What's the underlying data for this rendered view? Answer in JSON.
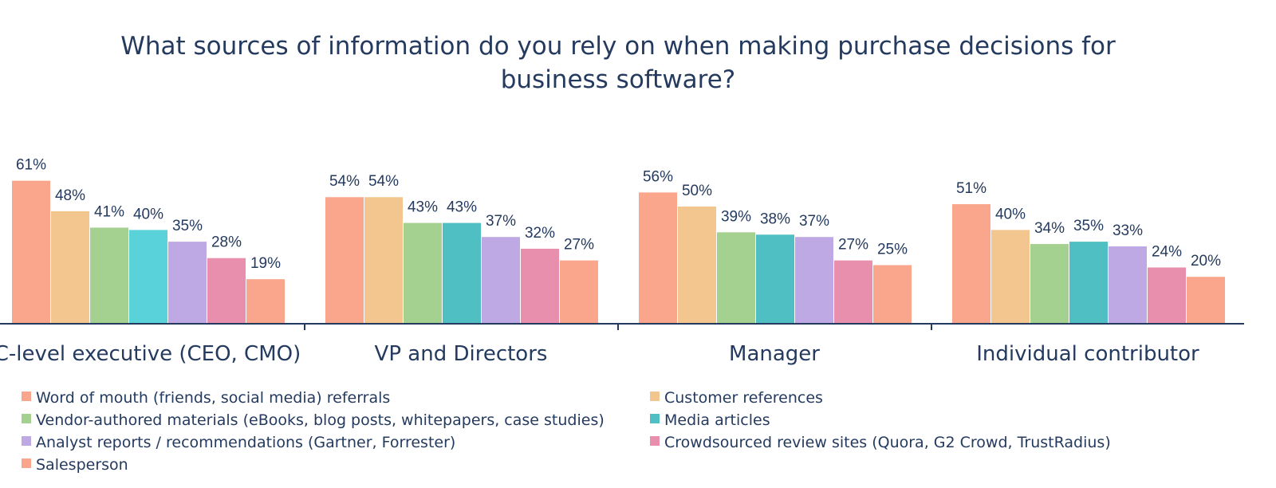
{
  "chart_data": {
    "type": "bar",
    "title": "What sources of information do you rely on when making purchase decisions for business software?",
    "title_lines": [
      "What sources of information do you rely on when making purchase decisions for",
      "business software?"
    ],
    "categories": [
      "C-level executive (CEO, CMO)",
      "VP and Directors",
      "Manager",
      "Individual contributor"
    ],
    "series": [
      {
        "name": "Word of mouth (friends, social media) referrals",
        "values": [
          61,
          54,
          56,
          51
        ],
        "labels": [
          "61%",
          "54%",
          "56%",
          "51%"
        ]
      },
      {
        "name": "Customer references",
        "values": [
          48,
          54,
          50,
          40
        ],
        "labels": [
          "48%",
          "54%",
          "50%",
          "40%"
        ]
      },
      {
        "name": "Vendor-authored materials (eBooks, blog posts, whitepapers, case studies)",
        "values": [
          41,
          43,
          39,
          34
        ],
        "labels": [
          "41%",
          "43%",
          "39%",
          "34%"
        ]
      },
      {
        "name": "Media articles",
        "values": [
          40,
          43,
          38,
          35
        ],
        "labels": [
          "40%",
          "43%",
          "38%",
          "35%"
        ]
      },
      {
        "name": "Analyst reports / recommendations (Gartner, Forrester)",
        "values": [
          35,
          37,
          37,
          33
        ],
        "labels": [
          "35%",
          "37%",
          "37%",
          "33%"
        ]
      },
      {
        "name": "Crowdsourced review sites (Quora, G2 Crowd, TrustRadius)",
        "values": [
          28,
          32,
          27,
          24
        ],
        "labels": [
          "28%",
          "32%",
          "27%",
          "24%"
        ]
      },
      {
        "name": "Salesperson",
        "values": [
          19,
          27,
          25,
          20
        ],
        "labels": [
          "19%",
          "27%",
          "25%",
          "20%"
        ]
      }
    ],
    "colors": {
      "series": [
        "#f9a68c",
        "#f4c68f",
        "#a4d18f",
        "#4fbfc3",
        "#bfa9e5",
        "#e98fae",
        "#f9a68c"
      ],
      "first_group_media_articles": "#59d2da",
      "text": "#243a5e",
      "axis": "#243a5e"
    },
    "ylim": [
      0,
      70
    ],
    "grid": false,
    "legend_position": "bottom"
  }
}
